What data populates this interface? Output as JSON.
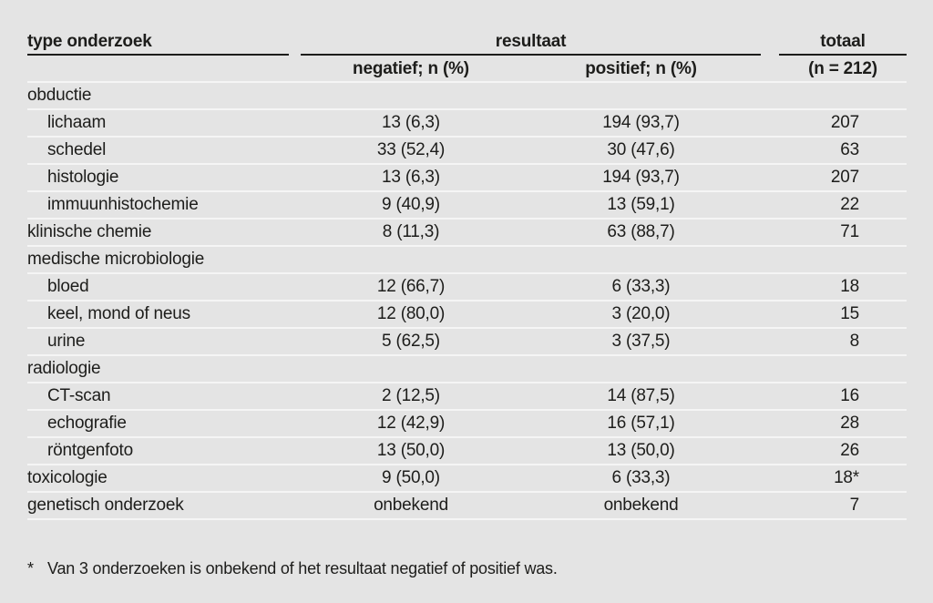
{
  "colors": {
    "background": "#e4e4e4",
    "text": "#1d1d1b",
    "rule_dark": "#1d1d1b",
    "rule_light": "#f5f5f5"
  },
  "table": {
    "columns": {
      "col_type": "type onderzoek",
      "group_result": "resultaat",
      "col_negative": "negatief; n (%)",
      "col_positive": "positief; n (%)",
      "col_total": "totaal",
      "col_total_sub": "(n = 212)"
    },
    "rows": [
      {
        "label": "obductie",
        "negatief": "",
        "positief": "",
        "totaal": ""
      },
      {
        "label": "lichaam",
        "negatief": "13 (6,3)",
        "positief": "194 (93,7)",
        "totaal": "207"
      },
      {
        "label": "schedel",
        "negatief": "33 (52,4)",
        "positief": "30 (47,6)",
        "totaal": "63"
      },
      {
        "label": "histologie",
        "negatief": "13 (6,3)",
        "positief": "194 (93,7)",
        "totaal": "207"
      },
      {
        "label": "immuunhistochemie",
        "negatief": "9 (40,9)",
        "positief": "13 (59,1)",
        "totaal": "22"
      },
      {
        "label": "klinische chemie",
        "negatief": "8 (11,3)",
        "positief": "63 (88,7)",
        "totaal": "71"
      },
      {
        "label": "medische microbiologie",
        "negatief": "",
        "positief": "",
        "totaal": ""
      },
      {
        "label": "bloed",
        "negatief": "12 (66,7)",
        "positief": "6 (33,3)",
        "totaal": "18"
      },
      {
        "label": "keel, mond of neus",
        "negatief": "12 (80,0)",
        "positief": "3 (20,0)",
        "totaal": "15"
      },
      {
        "label": "urine",
        "negatief": "5 (62,5)",
        "positief": "3 (37,5)",
        "totaal": "8"
      },
      {
        "label": "radiologie",
        "negatief": "",
        "positief": "",
        "totaal": ""
      },
      {
        "label": "CT-scan",
        "negatief": "2 (12,5)",
        "positief": "14 (87,5)",
        "totaal": "16"
      },
      {
        "label": "echografie",
        "negatief": "12 (42,9)",
        "positief": "16 (57,1)",
        "totaal": "28"
      },
      {
        "label": "röntgenfoto",
        "negatief": "13 (50,0)",
        "positief": "13 (50,0)",
        "totaal": "26"
      },
      {
        "label": "toxicologie",
        "negatief": "9 (50,0)",
        "positief": "6 (33,3)",
        "totaal": "18*"
      },
      {
        "label": "genetisch onderzoek",
        "negatief": "onbekend",
        "positief": "onbekend",
        "totaal": "7"
      }
    ]
  },
  "footnote": {
    "marker": "*",
    "text": "Van 3 onderzoeken is onbekend of het resultaat negatief of positief was."
  }
}
